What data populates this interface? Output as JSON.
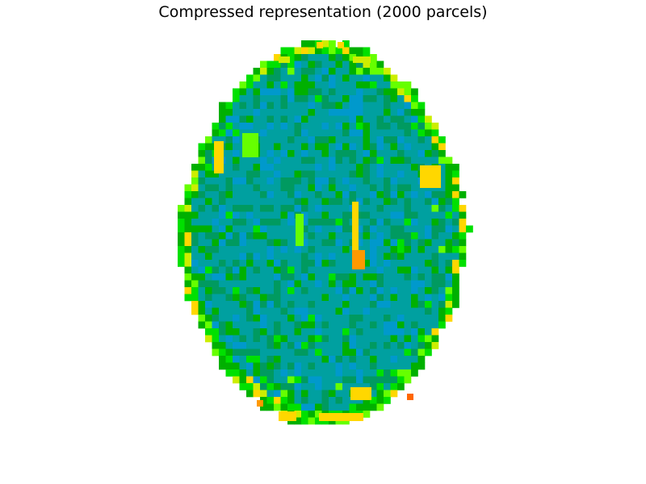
{
  "figure": {
    "title": "Compressed representation (2000 parcels)"
  },
  "colors": {
    "background": "#ffffff",
    "palette": [
      "#0099CC",
      "#00A0A0",
      "#009A60",
      "#00B000",
      "#00E000",
      "#66FF00",
      "#CCEE00",
      "#FFD700",
      "#FF9900",
      "#FF6600"
    ]
  }
}
